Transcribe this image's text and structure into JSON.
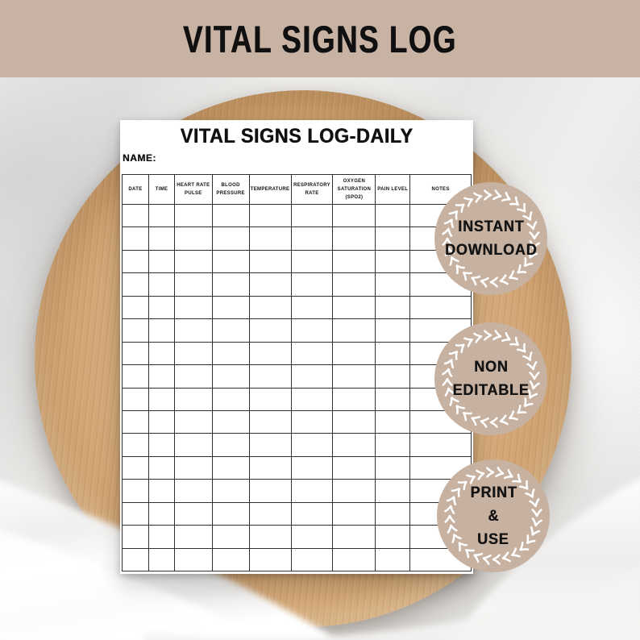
{
  "banner": {
    "title": "VITAL SIGNS LOG"
  },
  "document": {
    "title": "VITAL SIGNS LOG-DAILY",
    "name_label": "NAME:",
    "table": {
      "columns": [
        "DATE",
        "TIME",
        "HEART RATE\nPULSE",
        "BLOOD\nPRESSURE",
        "TEMPERATURE",
        "RESPIRATORY\nRATE",
        "OXYGEN\nSATURATION\n(SPO2)",
        "PAIN LEVEL",
        "NOTES"
      ],
      "blank_rows": 16
    }
  },
  "badges": [
    {
      "id": "instant-download",
      "lines": [
        "INSTANT",
        "DOWNLOAD"
      ]
    },
    {
      "id": "non-editable",
      "lines": [
        "NON",
        "EDITABLE"
      ]
    },
    {
      "id": "print-and-use",
      "lines": [
        "PRINT",
        "&",
        "USE"
      ]
    }
  ],
  "colors": {
    "banner_bg": "#c8b2a3",
    "badge_bg": "#c7b1a1",
    "text": "#111111"
  }
}
